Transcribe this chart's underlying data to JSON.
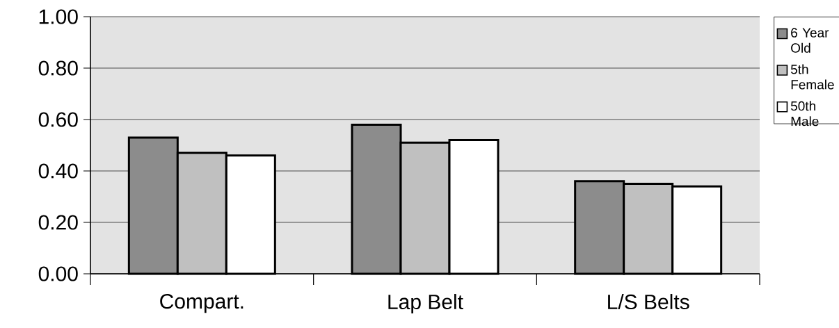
{
  "chart_data": {
    "type": "bar",
    "categories": [
      "Compart.",
      "Lap Belt",
      "L/S Belts"
    ],
    "series": [
      {
        "name": "6 Year Old",
        "color": "#8c8c8c",
        "values": [
          0.53,
          0.58,
          0.36
        ]
      },
      {
        "name": "5th Female",
        "color": "#c0c0c0",
        "values": [
          0.47,
          0.51,
          0.35
        ]
      },
      {
        "name": "50th Male",
        "color": "#ffffff",
        "values": [
          0.46,
          0.52,
          0.34
        ]
      }
    ],
    "ylim": [
      0,
      1
    ],
    "yticks": [
      {
        "value": 0,
        "label": "0.00"
      },
      {
        "value": 0.2,
        "label": "0.20"
      },
      {
        "value": 0.4,
        "label": "0.40"
      },
      {
        "value": 0.6,
        "label": "0.60"
      },
      {
        "value": 0.8,
        "label": "0.80"
      },
      {
        "value": 1,
        "label": "1.00"
      }
    ],
    "grid": "y",
    "legend": "right"
  }
}
